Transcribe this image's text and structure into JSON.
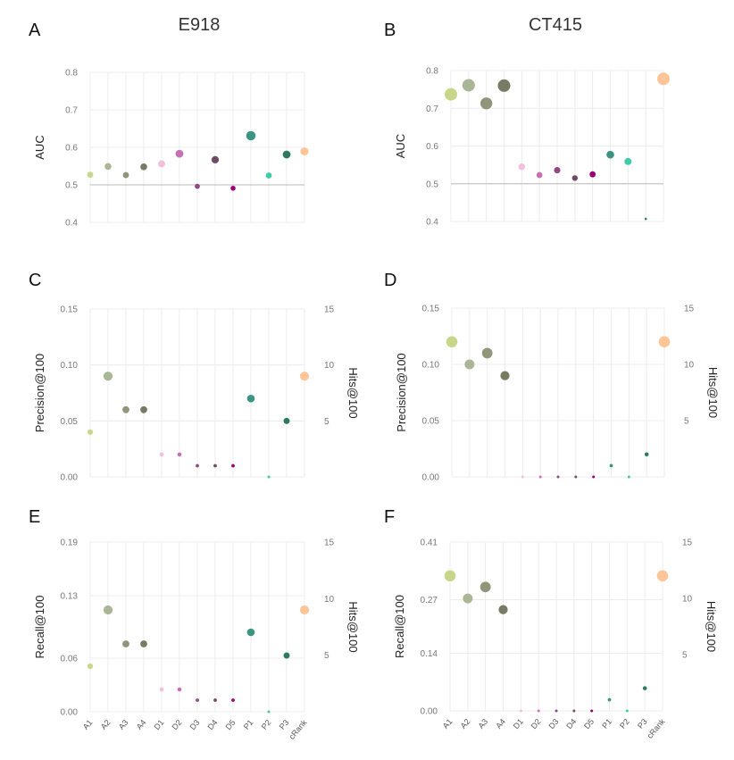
{
  "column_titles": [
    "E918",
    "CT415"
  ],
  "categories": [
    "A1",
    "A2",
    "A3",
    "A4",
    "D1",
    "D2",
    "D3",
    "D4",
    "D5",
    "P1",
    "P2",
    "P3",
    "cRank"
  ],
  "colors": [
    "#c6d78c",
    "#abb696",
    "#8f9679",
    "#777b63",
    "#f2c0dd",
    "#c570b5",
    "#8c4b83",
    "#6f4b64",
    "#990078",
    "#3b9582",
    "#3fcaa8",
    "#2c7a5f",
    "#ffc598"
  ],
  "chart_data": [
    {
      "panel": "A",
      "type": "scatter",
      "ylabel": "AUC",
      "ylim": [
        0.4,
        0.8
      ],
      "yticks": [
        "0.4",
        "0.5",
        "0.6",
        "0.7",
        "0.8"
      ],
      "reference_line": 0.5,
      "values": [
        0.527,
        0.549,
        0.526,
        0.548,
        0.556,
        0.583,
        0.496,
        0.567,
        0.491,
        0.631,
        0.525,
        0.581,
        0.589
      ]
    },
    {
      "panel": "B",
      "type": "scatter",
      "ylabel": "AUC",
      "ylim": [
        0.4,
        0.8
      ],
      "yticks": [
        "0.4",
        "0.5",
        "0.6",
        "0.7",
        "0.8"
      ],
      "reference_line": 0.5,
      "values": [
        0.737,
        0.761,
        0.713,
        0.76,
        0.545,
        0.523,
        0.536,
        0.515,
        0.525,
        0.577,
        0.559,
        0.407,
        0.778
      ]
    },
    {
      "panel": "C",
      "type": "scatter",
      "ylabel": "Precision@100",
      "y2label": "Hits@100",
      "ylim": [
        0,
        0.15
      ],
      "yticks": [
        "0.00",
        "0.05",
        "0.10",
        "0.15"
      ],
      "y2ticks": [
        "5",
        "10",
        "15"
      ],
      "values": [
        0.04,
        0.09,
        0.06,
        0.06,
        0.02,
        0.02,
        0.01,
        0.01,
        0.01,
        0.07,
        0.0,
        0.05,
        0.09
      ]
    },
    {
      "panel": "D",
      "type": "scatter",
      "ylabel": "Precision@100",
      "y2label": "Hits@100",
      "ylim": [
        0,
        0.15
      ],
      "yticks": [
        "0.00",
        "0.05",
        "0.10",
        "0.15"
      ],
      "y2ticks": [
        "5",
        "10",
        "15"
      ],
      "values": [
        0.12,
        0.1,
        0.11,
        0.09,
        0.0,
        0.0,
        0.0,
        0.0,
        0.0,
        0.01,
        0.0,
        0.02,
        0.12
      ]
    },
    {
      "panel": "E",
      "type": "scatter",
      "ylabel": "Recall@100",
      "y2label": "Hits@100",
      "ylim": [
        0,
        0.19
      ],
      "yticks": [
        "0.00",
        "0.06",
        "0.13",
        "0.19"
      ],
      "y2ticks": [
        "5",
        "10",
        "15"
      ],
      "values": [
        0.051,
        0.114,
        0.076,
        0.076,
        0.025,
        0.025,
        0.013,
        0.013,
        0.013,
        0.089,
        0.0,
        0.063,
        0.114
      ]
    },
    {
      "panel": "F",
      "type": "scatter",
      "ylabel": "Recall@100",
      "y2label": "Hits@100",
      "ylim": [
        0,
        0.41
      ],
      "yticks": [
        "0.00",
        "0.14",
        "0.27",
        "0.41"
      ],
      "y2ticks": [
        "5",
        "10",
        "15"
      ],
      "values": [
        0.328,
        0.273,
        0.301,
        0.246,
        0.0,
        0.0,
        0.0,
        0.0,
        0.0,
        0.027,
        0.0,
        0.055,
        0.328
      ]
    }
  ]
}
